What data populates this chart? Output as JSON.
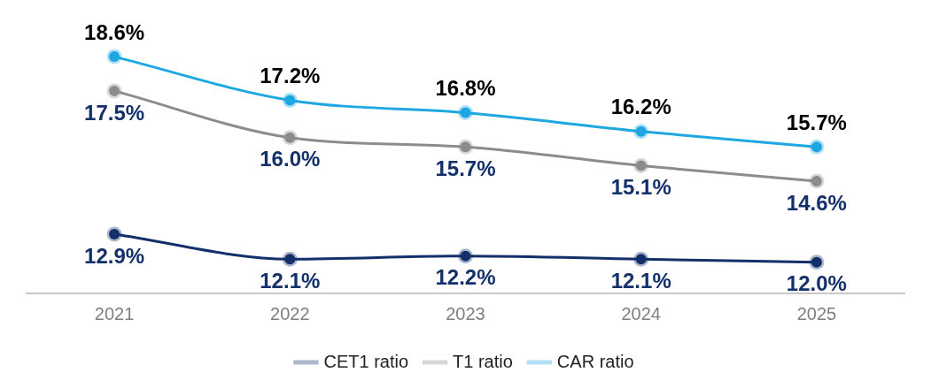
{
  "chart_data": {
    "type": "line",
    "categories": [
      "2021",
      "2022",
      "2023",
      "2024",
      "2025"
    ],
    "series": [
      {
        "name": "CET1 ratio",
        "color": "#13306b",
        "values": [
          12.9,
          12.1,
          12.2,
          12.1,
          12.0
        ],
        "value_labels": [
          "12.9%",
          "12.1%",
          "12.2%",
          "12.1%",
          "12.0%"
        ]
      },
      {
        "name": "T1 ratio",
        "color": "#8c8c8c",
        "values": [
          17.5,
          16.0,
          15.7,
          15.1,
          14.6
        ],
        "value_labels": [
          "17.5%",
          "16.0%",
          "15.7%",
          "15.1%",
          "14.6%"
        ]
      },
      {
        "name": "CAR ratio",
        "color": "#1ea7e1",
        "values": [
          18.6,
          17.2,
          16.8,
          16.2,
          15.7
        ],
        "value_labels": [
          "18.6%",
          "17.2%",
          "16.8%",
          "16.2%",
          "15.7%"
        ]
      }
    ],
    "grid": false,
    "legend": "bottom",
    "marker": "circle",
    "line_style": "solid"
  }
}
